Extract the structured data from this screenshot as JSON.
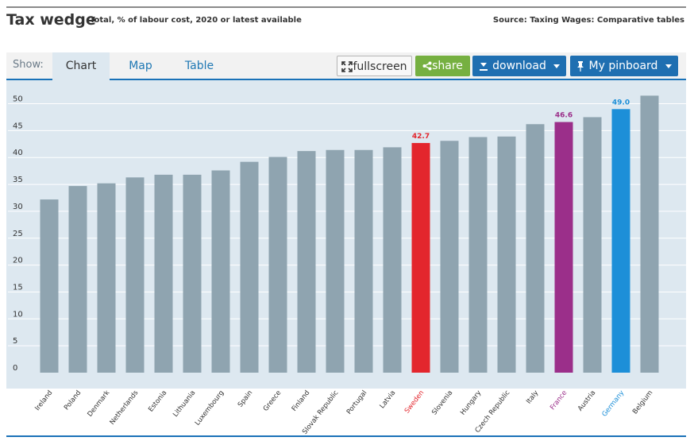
{
  "header": {
    "title": "Tax wedge",
    "subtitle": "Total, % of labour cost, 2020 or latest available",
    "source": "Source: Taxing Wages: Comparative tables"
  },
  "toolbar": {
    "show_label": "Show:",
    "tabs": [
      "Chart",
      "Map",
      "Table"
    ],
    "fullscreen_label": "fullscreen",
    "share_label": "share",
    "download_label": "download",
    "pinboard_label": "My pinboard"
  },
  "colors": {
    "default_bar": "#8fa4b0",
    "highlight_sweden": "#e3262d",
    "highlight_france": "#9b2f8a",
    "highlight_germany": "#1d8fd8",
    "grid": "#ffffff",
    "tick_label": "#333333"
  },
  "chart_data": {
    "type": "bar",
    "title": "Tax wedge",
    "xlabel": "",
    "ylabel": "",
    "ylim": [
      0,
      52
    ],
    "yticks": [
      0,
      5,
      10,
      15,
      20,
      25,
      30,
      35,
      40,
      45,
      50
    ],
    "categories": [
      "Ireland",
      "Poland",
      "Denmark",
      "Netherlands",
      "Estonia",
      "Lithuania",
      "Luxembourg",
      "Spain",
      "Greece",
      "Finland",
      "Slovak Republic",
      "Portugal",
      "Latvia",
      "Sweden",
      "Slovenia",
      "Hungary",
      "Czech Republic",
      "Italy",
      "France",
      "Austria",
      "Germany",
      "Belgium"
    ],
    "values": [
      32.2,
      34.7,
      35.2,
      36.3,
      36.8,
      36.8,
      37.6,
      39.2,
      40.1,
      41.2,
      41.4,
      41.4,
      41.9,
      42.7,
      43.1,
      43.8,
      43.9,
      46.2,
      46.6,
      47.5,
      49.0,
      51.5
    ],
    "highlights": {
      "Sweden": {
        "color": "#e3262d",
        "label": "42.7"
      },
      "France": {
        "color": "#9b2f8a",
        "label": "46.6"
      },
      "Germany": {
        "color": "#1d8fd8",
        "label": "49.0"
      }
    }
  }
}
